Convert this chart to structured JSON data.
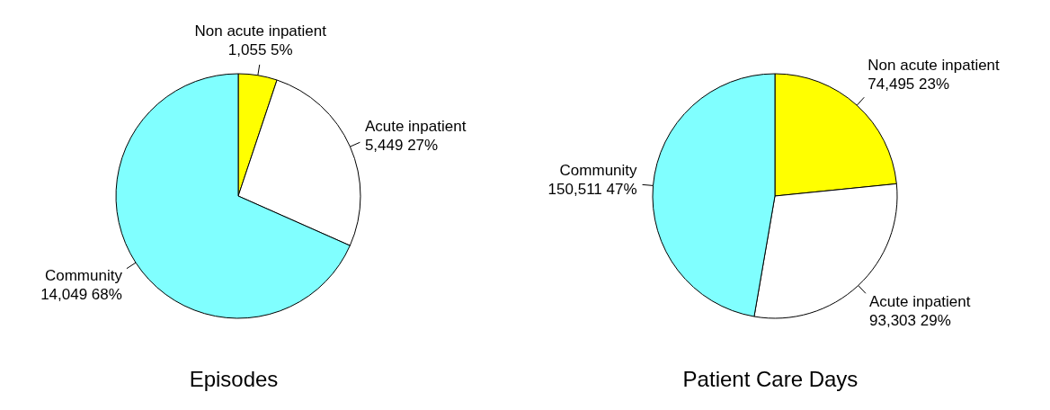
{
  "chart_data": [
    {
      "type": "pie",
      "title": "Episodes",
      "categories": [
        "Non acute inpatient",
        "Acute inpatient",
        "Community"
      ],
      "values": [
        1055,
        5449,
        14049
      ],
      "value_labels": [
        "1,055  5%",
        "5,449  27%",
        "14,049  68%"
      ],
      "colors": [
        "#ffff00",
        "#ffffff",
        "#80ffff"
      ],
      "legend": false
    },
    {
      "type": "pie",
      "title": "Patient Care Days",
      "categories": [
        "Non acute inpatient",
        "Acute inpatient",
        "Community"
      ],
      "values": [
        74495,
        93303,
        150511
      ],
      "value_labels": [
        "74,495  23%",
        "93,303  29%",
        "150,511  47%"
      ],
      "colors": [
        "#ffff00",
        "#ffffff",
        "#80ffff"
      ],
      "legend": false
    }
  ]
}
